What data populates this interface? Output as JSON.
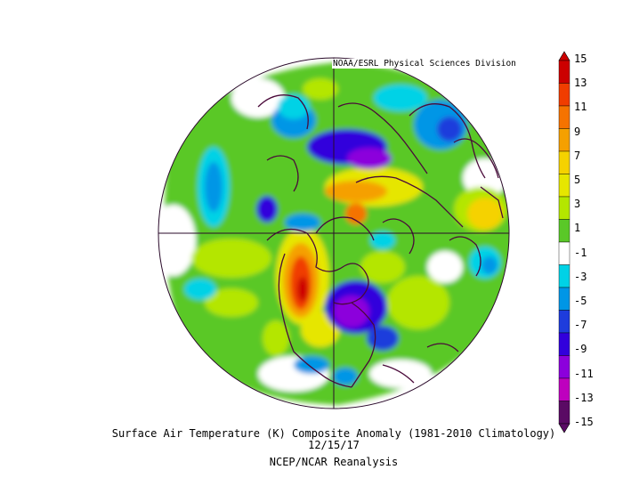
{
  "credit": "NOAA/ESRL Physical Sciences Division",
  "caption": {
    "title": "Surface Air Temperature (K) Composite Anomaly (1981-2010 Climatology)",
    "date": "12/15/17",
    "source": "NCEP/NCAR Reanalysis"
  },
  "colorbar": {
    "labels": [
      "15",
      "13",
      "11",
      "9",
      "7",
      "5",
      "3",
      "1",
      "-1",
      "-3",
      "-5",
      "-7",
      "-9",
      "-11",
      "-13",
      "-15"
    ],
    "colors": [
      "#cc0000",
      "#f03d00",
      "#f57300",
      "#f5a000",
      "#f5d200",
      "#e6e600",
      "#b4e600",
      "#5ac828",
      "#ffffff",
      "#00d2e6",
      "#0096e6",
      "#1e3cdc",
      "#3200dc",
      "#8c00dc",
      "#be00be",
      "#5a0a64"
    ]
  }
}
